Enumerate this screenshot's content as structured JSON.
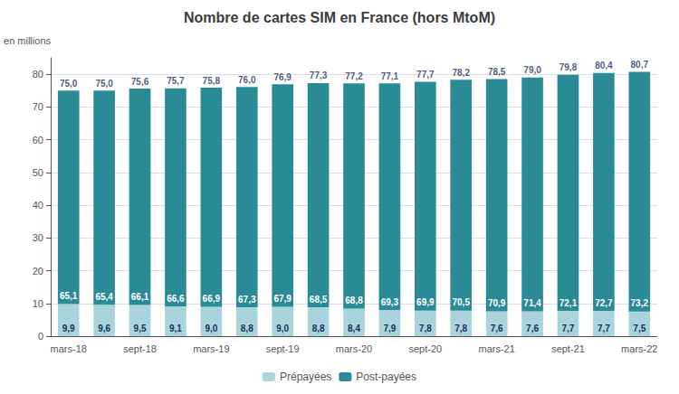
{
  "chart_data": {
    "type": "bar",
    "stacked": true,
    "title": "Nombre de cartes SIM en France (hors MtoM)",
    "ylabel": "en millions",
    "categories": [
      "mars-18",
      null,
      "sept-18",
      null,
      "mars-19",
      null,
      "sept-19",
      null,
      "mars-20",
      null,
      "sept-20",
      null,
      "mars-21",
      null,
      "sept-21",
      null,
      "mars-22"
    ],
    "series": [
      {
        "name": "Prépayées",
        "color": "#aad4db",
        "values": [
          9.9,
          9.6,
          9.5,
          9.1,
          9.0,
          8.8,
          9.0,
          8.8,
          8.4,
          7.9,
          7.8,
          7.8,
          7.6,
          7.6,
          7.7,
          7.7,
          7.5
        ],
        "value_labels": [
          "9,9",
          "9,6",
          "9,5",
          "9,1",
          "9,0",
          "8,8",
          "9,0",
          "8,8",
          "8,4",
          "7,9",
          "7,8",
          "7,8",
          "7,6",
          "7,6",
          "7,7",
          "7,7",
          "7,5"
        ]
      },
      {
        "name": "Post-payées",
        "color": "#2a8a96",
        "values": [
          65.1,
          65.4,
          66.1,
          66.6,
          66.9,
          67.3,
          67.9,
          68.5,
          68.8,
          69.3,
          69.9,
          70.5,
          70.9,
          71.4,
          72.1,
          72.7,
          73.2
        ],
        "value_labels": [
          "65,1",
          "65,4",
          "66,1",
          "66,6",
          "66,9",
          "67,3",
          "67,9",
          "68,5",
          "68,8",
          "69,3",
          "69,9",
          "70,5",
          "70,9",
          "71,4",
          "72,1",
          "72,7",
          "73,2"
        ]
      }
    ],
    "totals": [
      75.0,
      75.0,
      75.6,
      75.7,
      75.8,
      76.0,
      76.9,
      77.3,
      77.2,
      77.1,
      77.7,
      78.2,
      78.5,
      79.0,
      79.8,
      80.4,
      80.7
    ],
    "total_labels": [
      "75,0",
      "75,0",
      "75,6",
      "75,7",
      "75,8",
      "76,0",
      "76,9",
      "77,3",
      "77,2",
      "77,1",
      "77,7",
      "78,2",
      "78,5",
      "79,0",
      "79,8",
      "80,4",
      "80,7"
    ],
    "data_labels": true,
    "ylim": [
      0,
      85
    ],
    "yticks": [
      0,
      10,
      20,
      30,
      40,
      50,
      60,
      70,
      80
    ],
    "grid": true,
    "legend": "bottom"
  }
}
